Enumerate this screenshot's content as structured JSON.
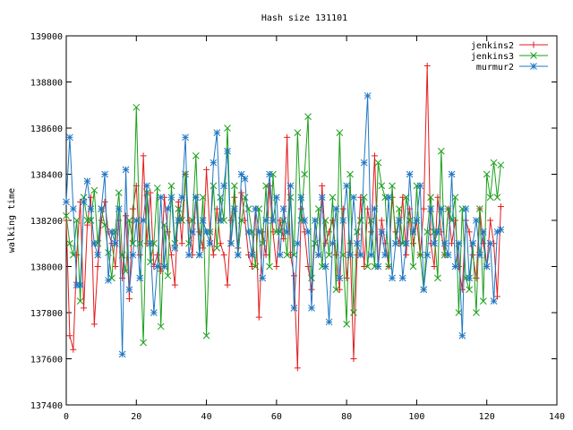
{
  "chart_data": {
    "type": "line",
    "title": "Hash size 131101",
    "xlabel": "",
    "ylabel": "walking time",
    "xlim": [
      0,
      140
    ],
    "ylim": [
      137400,
      139000
    ],
    "xticks": [
      "0",
      "20",
      "40",
      "60",
      "80",
      "100",
      "120",
      "140"
    ],
    "yticks": [
      "137400",
      "137600",
      "137800",
      "138000",
      "138200",
      "138400",
      "138600",
      "138800",
      "139000"
    ],
    "grid": false,
    "legend_position": "top-right",
    "series": [
      {
        "name": "jenkins2",
        "color": "#e41a1c",
        "marker": "plus",
        "values": [
          138200,
          137700,
          137640,
          138050,
          138280,
          137820,
          138180,
          138300,
          137750,
          138000,
          138200,
          138280,
          138150,
          138100,
          138000,
          138200,
          137950,
          138220,
          137860,
          138250,
          138350,
          138050,
          138480,
          138100,
          138320,
          138000,
          138050,
          137980,
          138300,
          138150,
          138050,
          137920,
          138280,
          138100,
          138400,
          138200,
          138050,
          138300,
          138150,
          138080,
          138420,
          138150,
          138050,
          138250,
          138100,
          138050,
          137920,
          138200,
          138300,
          138080,
          138320,
          138200,
          138050,
          138000,
          138250,
          137780,
          138150,
          138050,
          138350,
          138150,
          138000,
          138200,
          138120,
          138560,
          138050,
          137960,
          137560,
          138250,
          138150,
          138000,
          137900,
          138200,
          138050,
          138350,
          138100,
          138150,
          138200,
          138050,
          137900,
          138250,
          137950,
          138100,
          137600,
          138050,
          138300,
          138000,
          138250,
          138150,
          138480,
          138000,
          138200,
          138100,
          138000,
          138300,
          138150,
          138100,
          138300,
          138050,
          138250,
          138100,
          138200,
          138050,
          138250,
          138870,
          138100,
          138000,
          138300,
          138150,
          138050,
          138250,
          138100,
          138200,
          138000,
          137900,
          138200,
          138150,
          138050,
          137950,
          138250,
          138100,
          138000,
          138200,
          138100,
          137870,
          138260
        ]
      },
      {
        "name": "jenkins3",
        "color": "#1aa01a",
        "marker": "cross",
        "values": [
          138220,
          138100,
          138050,
          138200,
          137850,
          138300,
          138200,
          138200,
          138330,
          138100,
          138250,
          138180,
          138060,
          137950,
          138150,
          138320,
          138050,
          137980,
          138200,
          138100,
          138690,
          138100,
          137670,
          138320,
          138020,
          138100,
          138340,
          137740,
          138180,
          137960,
          138350,
          138100,
          138250,
          138200,
          138400,
          138100,
          138200,
          138480,
          138050,
          138300,
          137700,
          138150,
          138350,
          138080,
          138300,
          138200,
          138600,
          138100,
          138350,
          138050,
          138200,
          138300,
          138250,
          138150,
          138000,
          138250,
          138100,
          138350,
          138000,
          138400,
          138150,
          138150,
          138200,
          138050,
          138300,
          138050,
          138580,
          138200,
          138400,
          138650,
          137950,
          138100,
          138250,
          138000,
          138200,
          138050,
          138300,
          137900,
          138580,
          138050,
          137750,
          138400,
          137800,
          138150,
          138200,
          138300,
          138000,
          138200,
          138000,
          138450,
          138350,
          138300,
          138000,
          138350,
          138100,
          138250,
          138100,
          138300,
          138200,
          138000,
          138350,
          138050,
          137900,
          138150,
          138300,
          138150,
          137950,
          138500,
          138050,
          138250,
          138200,
          138300,
          137800,
          138250,
          137950,
          137900,
          138100,
          137800,
          138250,
          137850,
          138400,
          138300,
          138450,
          138300,
          138440
        ]
      },
      {
        "name": "murmur2",
        "color": "#1f77c4",
        "marker": "star",
        "values": [
          138280,
          138560,
          138250,
          137920,
          137920,
          138280,
          138370,
          138250,
          138100,
          138050,
          138250,
          138400,
          137940,
          138150,
          138100,
          138250,
          137620,
          138420,
          137900,
          138050,
          138200,
          137950,
          138200,
          138350,
          138100,
          137800,
          138000,
          138300,
          138000,
          138250,
          138300,
          138080,
          138200,
          138300,
          138560,
          138050,
          138150,
          138300,
          138050,
          138200,
          138150,
          138100,
          138450,
          138580,
          138200,
          138350,
          138500,
          138100,
          138250,
          138050,
          138400,
          138380,
          138150,
          138050,
          138250,
          138150,
          137950,
          138200,
          138400,
          138200,
          138300,
          138050,
          138250,
          138150,
          138350,
          137820,
          138100,
          138300,
          138200,
          138150,
          137820,
          138200,
          138050,
          138300,
          138000,
          137760,
          138100,
          138250,
          137950,
          138200,
          138350,
          138050,
          138300,
          138100,
          138050,
          138450,
          138740,
          138050,
          138250,
          138000,
          138150,
          138050,
          138300,
          137950,
          138100,
          138200,
          137950,
          138100,
          138400,
          138150,
          138200,
          138350,
          137900,
          138050,
          138250,
          138100,
          138150,
          138250,
          138100,
          138050,
          138400,
          138000,
          138100,
          137700,
          138250,
          137950,
          138100,
          138200,
          138050,
          138150,
          138000,
          138100,
          137850,
          138150,
          138160
        ]
      }
    ]
  }
}
